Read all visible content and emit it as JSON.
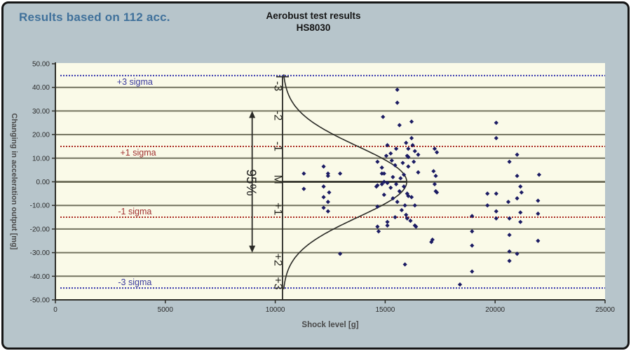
{
  "header": {
    "results_note": "Results based on 112 acc.",
    "title_line1": "Aerobust test results",
    "title_line2": "HS8030"
  },
  "axes": {
    "x_label": "Shock level [g]",
    "y_label": "Changing in acceleration output [mg]",
    "x_ticks": [
      "0",
      "5000",
      "10000",
      "15000",
      "20000",
      "25000"
    ],
    "y_ticks": [
      "50.00",
      "40.00",
      "30.00",
      "20.00",
      "10.00",
      "0.00",
      "-10.00",
      "-20.00",
      "-30.00",
      "-40.00",
      "-50.00"
    ]
  },
  "colors": {
    "frame_bg": "#b7c5cb",
    "plot_bg": "#fafae8",
    "grid": "#73735f",
    "axis": "#2f2f2a",
    "blue_sigma": "#3434ac",
    "blue_sigma_label": "#3b3b9e",
    "red_sigma": "#ab2b22",
    "red_sigma_label": "#a03030",
    "points": "#1b1b63",
    "curve": "#2a2a26"
  },
  "chart_data": {
    "type": "scatter",
    "title": "Aerobust test results HS8030",
    "subtitle": "Results based on 112 acc.",
    "xlabel": "Shock level [g]",
    "ylabel": "Changing in acceleration output [mg]",
    "xlim": [
      0,
      25000
    ],
    "ylim": [
      -50,
      50
    ],
    "grid": "horizontal, every 10 mg",
    "sigma_lines": [
      {
        "value": 45,
        "label": "+3 sigma",
        "color": "#3434ac",
        "label_color": "#3b3b9e",
        "label_side": "below",
        "label_x_g": 2800
      },
      {
        "value": 15,
        "label": "+1 sigma",
        "color": "#ab2b22",
        "label_color": "#a03030",
        "label_side": "below",
        "label_x_g": 2950
      },
      {
        "value": -15,
        "label": "-1 sigma",
        "color": "#ab2b22",
        "label_color": "#a03030",
        "label_side": "above",
        "label_x_g": 2850
      },
      {
        "value": -45,
        "label": "-3 sigma",
        "color": "#3434ac",
        "label_color": "#3b3b9e",
        "label_side": "above",
        "label_x_g": 2850
      }
    ],
    "normal_curve": {
      "baseline_x_g": 10330,
      "mean_mg": 0,
      "sigma_mg": 15,
      "amplitude_g": 5648
    },
    "interval_arrow": {
      "x_g": 8950,
      "from_mg": 30,
      "to_mg": -30,
      "label": "95%"
    },
    "axis_scale_labels": [
      {
        "label": "-3",
        "mg": 40.5
      },
      {
        "label": "-2",
        "mg": 28
      },
      {
        "label": "-1",
        "mg": 15
      },
      {
        "label": "M",
        "mg": 1
      },
      {
        "label": "+1",
        "mg": -11.5
      },
      {
        "label": "+2",
        "mg": -33
      },
      {
        "label": "+3",
        "mg": -43
      }
    ],
    "points": [
      [
        15550,
        39
      ],
      [
        15550,
        33.5
      ],
      [
        14900,
        27.5
      ],
      [
        15650,
        24
      ],
      [
        16200,
        25.5
      ],
      [
        20050,
        25
      ],
      [
        16200,
        18.5
      ],
      [
        20050,
        18.5
      ],
      [
        15100,
        15.5
      ],
      [
        15500,
        14
      ],
      [
        16050,
        14
      ],
      [
        16250,
        15.5
      ],
      [
        17250,
        14
      ],
      [
        17350,
        12.5
      ],
      [
        16500,
        11.5
      ],
      [
        16000,
        11
      ],
      [
        12200,
        6.5
      ],
      [
        21000,
        11.5
      ],
      [
        16300,
        8.5
      ],
      [
        14650,
        8.5
      ],
      [
        15250,
        12
      ],
      [
        14850,
        6
      ],
      [
        14850,
        3.5
      ],
      [
        14950,
        3.5
      ],
      [
        12950,
        3.5
      ],
      [
        16500,
        4
      ],
      [
        17200,
        4.5
      ],
      [
        17300,
        2.5
      ],
      [
        11300,
        3.5
      ],
      [
        12400,
        3.5
      ],
      [
        12400,
        2.5
      ],
      [
        20650,
        8.5
      ],
      [
        21000,
        2.5
      ],
      [
        22000,
        3
      ],
      [
        16050,
        6.5
      ],
      [
        16050,
        10.5
      ],
      [
        14950,
        0
      ],
      [
        15100,
        -0.5
      ],
      [
        14600,
        -2
      ],
      [
        11300,
        -3
      ],
      [
        12200,
        -2
      ],
      [
        12450,
        -4.5
      ],
      [
        12200,
        -6.5
      ],
      [
        14650,
        -1.5
      ],
      [
        14850,
        -1
      ],
      [
        14950,
        -5.5
      ],
      [
        15650,
        -4
      ],
      [
        16050,
        -6
      ],
      [
        16200,
        -6.5
      ],
      [
        15900,
        -10
      ],
      [
        16350,
        -10
      ],
      [
        17250,
        -1
      ],
      [
        17300,
        -4
      ],
      [
        17350,
        -4.5
      ],
      [
        19650,
        -5
      ],
      [
        20050,
        -5
      ],
      [
        21150,
        -2
      ],
      [
        21200,
        -4.5
      ],
      [
        20600,
        -8.5
      ],
      [
        21000,
        -7
      ],
      [
        21950,
        -8
      ],
      [
        19650,
        -10
      ],
      [
        16000,
        -5
      ],
      [
        15950,
        -14
      ],
      [
        16000,
        -15.5
      ],
      [
        15100,
        -18.5
      ],
      [
        12400,
        -8.5
      ],
      [
        12200,
        -11
      ],
      [
        12400,
        -12.5
      ],
      [
        14650,
        -10.5
      ],
      [
        15100,
        -17
      ],
      [
        14650,
        -19
      ],
      [
        16350,
        -18.5
      ],
      [
        16400,
        -19
      ],
      [
        18950,
        -14.5
      ],
      [
        20050,
        -12.5
      ],
      [
        21150,
        -13
      ],
      [
        21950,
        -13.5
      ],
      [
        20050,
        -15.5
      ],
      [
        20650,
        -15.5
      ],
      [
        21150,
        -17
      ],
      [
        17150,
        -24.5
      ],
      [
        18950,
        -21
      ],
      [
        20650,
        -22.5
      ],
      [
        21950,
        -25
      ],
      [
        17100,
        -25.5
      ],
      [
        12950,
        -30.5
      ],
      [
        18950,
        -27
      ],
      [
        20650,
        -29.5
      ],
      [
        21000,
        -30.5
      ],
      [
        15900,
        -35
      ],
      [
        20650,
        -33.5
      ],
      [
        18950,
        -38
      ],
      [
        18400,
        -43.5
      ],
      [
        15300,
        9
      ],
      [
        15450,
        7
      ],
      [
        15800,
        8
      ],
      [
        15350,
        2
      ],
      [
        15700,
        1.5
      ],
      [
        15850,
        3
      ],
      [
        15250,
        -2.5
      ],
      [
        15500,
        -1
      ],
      [
        15850,
        -2
      ],
      [
        15350,
        -7
      ],
      [
        15550,
        -8.5
      ],
      [
        15750,
        -12
      ],
      [
        15450,
        -15
      ],
      [
        16150,
        -16.5
      ],
      [
        15950,
        16.5
      ],
      [
        16350,
        13
      ],
      [
        15050,
        11
      ],
      [
        14700,
        -21
      ]
    ]
  }
}
